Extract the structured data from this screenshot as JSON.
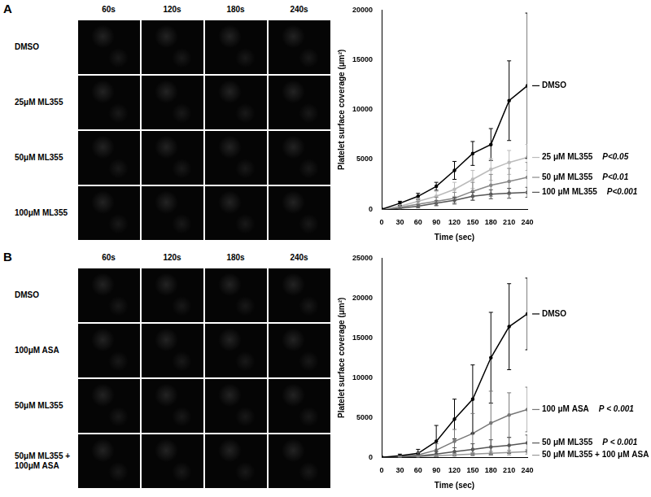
{
  "panels": [
    {
      "label": "A",
      "columns": [
        "60s",
        "120s",
        "180s",
        "240s"
      ],
      "rows": [
        "DMSO",
        "25μM ML355",
        "50μM ML355",
        "100μM ML355"
      ]
    },
    {
      "label": "B",
      "columns": [
        "60s",
        "120s",
        "180s",
        "240s"
      ],
      "rows": [
        "DMSO",
        "100μM ASA",
        "50μM ML355",
        "50μM ML355 + 100μM ASA"
      ]
    }
  ],
  "chart_data": [
    {
      "type": "line",
      "x_label": "Time (sec)",
      "y_label": "Platelet surface coverage (μm²)",
      "x": [
        0,
        30,
        60,
        90,
        120,
        150,
        180,
        210,
        240
      ],
      "xlim": [
        0,
        240
      ],
      "xticks": [
        0,
        30,
        60,
        90,
        120,
        150,
        180,
        210,
        240
      ],
      "ylim": [
        0,
        20000
      ],
      "yticks": [
        0,
        5000,
        10000,
        15000,
        20000
      ],
      "grid": false,
      "series": [
        {
          "name": "DMSO",
          "color": "#000000",
          "values": [
            0,
            600,
            1300,
            2300,
            3900,
            5600,
            6500,
            10900,
            12400
          ],
          "errors": [
            0,
            200,
            300,
            400,
            900,
            1200,
            1600,
            4000,
            7300
          ]
        },
        {
          "name": "25 μM ML355",
          "color": "#bbbbbb",
          "p_value": "P<0.05",
          "values": [
            0,
            300,
            800,
            1300,
            2000,
            3000,
            4000,
            4700,
            5200
          ],
          "errors": [
            0,
            150,
            300,
            500,
            700,
            900,
            1100,
            1200,
            1300
          ]
        },
        {
          "name": "50 μM ML355",
          "color": "#888888",
          "p_value": "P<0.01",
          "values": [
            0,
            200,
            500,
            800,
            1100,
            1800,
            2400,
            2800,
            3200
          ],
          "errors": [
            0,
            100,
            300,
            400,
            600,
            900,
            1100,
            1300,
            1500
          ]
        },
        {
          "name": "100 μM ML355",
          "color": "#555555",
          "p_value": "P<0.001",
          "values": [
            0,
            100,
            300,
            600,
            900,
            1300,
            1500,
            1600,
            1700
          ],
          "errors": [
            0,
            80,
            150,
            250,
            300,
            400,
            450,
            500,
            500
          ]
        }
      ]
    },
    {
      "type": "line",
      "x_label": "Time (sec)",
      "y_label": "Platelet surface coverage (μm²)",
      "x": [
        0,
        30,
        60,
        90,
        120,
        150,
        180,
        210,
        240
      ],
      "xlim": [
        0,
        240
      ],
      "xticks": [
        0,
        30,
        60,
        90,
        120,
        150,
        180,
        210,
        240
      ],
      "ylim": [
        0,
        25000
      ],
      "yticks": [
        0,
        5000,
        10000,
        15000,
        20000,
        25000
      ],
      "grid": false,
      "series": [
        {
          "name": "DMSO",
          "color": "#000000",
          "values": [
            0,
            200,
            500,
            2000,
            4800,
            7300,
            12500,
            16400,
            18000
          ],
          "errors": [
            0,
            200,
            500,
            2000,
            2500,
            4300,
            5700,
            5400,
            4500
          ]
        },
        {
          "name": "100 μM ASA",
          "color": "#777777",
          "p_value": "P < 0.001",
          "values": [
            0,
            100,
            300,
            900,
            2000,
            3000,
            4300,
            5300,
            6000
          ],
          "errors": [
            0,
            100,
            300,
            800,
            1500,
            2500,
            4000,
            2800,
            2800
          ]
        },
        {
          "name": "50 μM ML355",
          "color": "#555555",
          "p_value": "P < 0.001",
          "values": [
            0,
            50,
            150,
            400,
            700,
            1000,
            1300,
            1500,
            1800
          ],
          "errors": [
            0,
            50,
            150,
            300,
            500,
            700,
            900,
            1000,
            1000
          ]
        },
        {
          "name": "50 μM ML355 + 100 μM ASA",
          "color": "#999999",
          "values": [
            0,
            50,
            100,
            200,
            300,
            400,
            500,
            600,
            700
          ],
          "errors": [
            0,
            30,
            60,
            100,
            150,
            200,
            250,
            300,
            300
          ]
        }
      ]
    }
  ]
}
